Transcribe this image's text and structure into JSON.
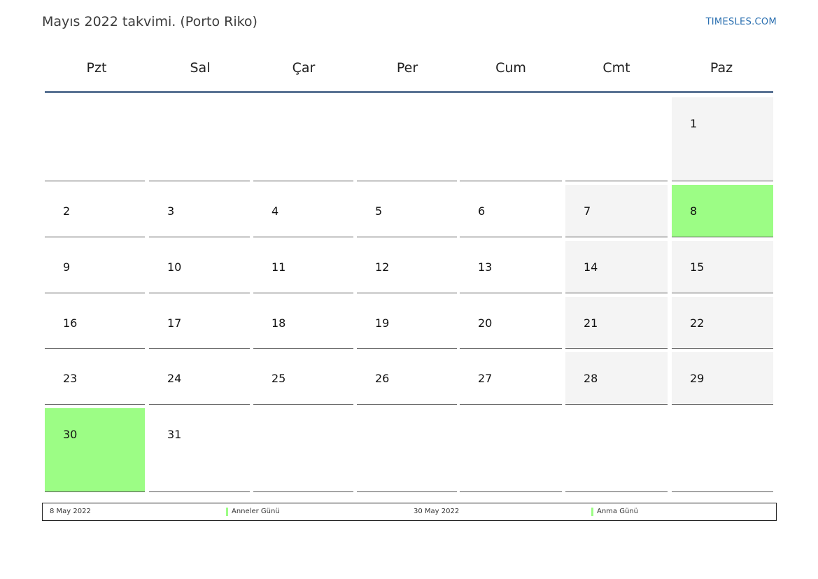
{
  "title": "Mayıs 2022 takvimi. (Porto Riko)",
  "brand": "TIMESLES.COM",
  "weekdays": [
    "Pzt",
    "Sal",
    "Çar",
    "Per",
    "Cum",
    "Cmt",
    "Paz"
  ],
  "colors": {
    "holiday": "#9cfd85",
    "weekend": "#f4f4f4",
    "header_rule": "#5a7394"
  },
  "weeks": [
    [
      "",
      "",
      "",
      "",
      "",
      "",
      "1"
    ],
    [
      "2",
      "3",
      "4",
      "5",
      "6",
      "7",
      "8"
    ],
    [
      "9",
      "10",
      "11",
      "12",
      "13",
      "14",
      "15"
    ],
    [
      "16",
      "17",
      "18",
      "19",
      "20",
      "21",
      "22"
    ],
    [
      "23",
      "24",
      "25",
      "26",
      "27",
      "28",
      "29"
    ],
    [
      "30",
      "31",
      "",
      "",
      "",
      "",
      ""
    ]
  ],
  "holiday_days": [
    "8",
    "30"
  ],
  "legend": [
    {
      "date": "8 May 2022",
      "name": "Anneler Günü"
    },
    {
      "date": "30 May 2022",
      "name": "Anma Günü"
    }
  ]
}
